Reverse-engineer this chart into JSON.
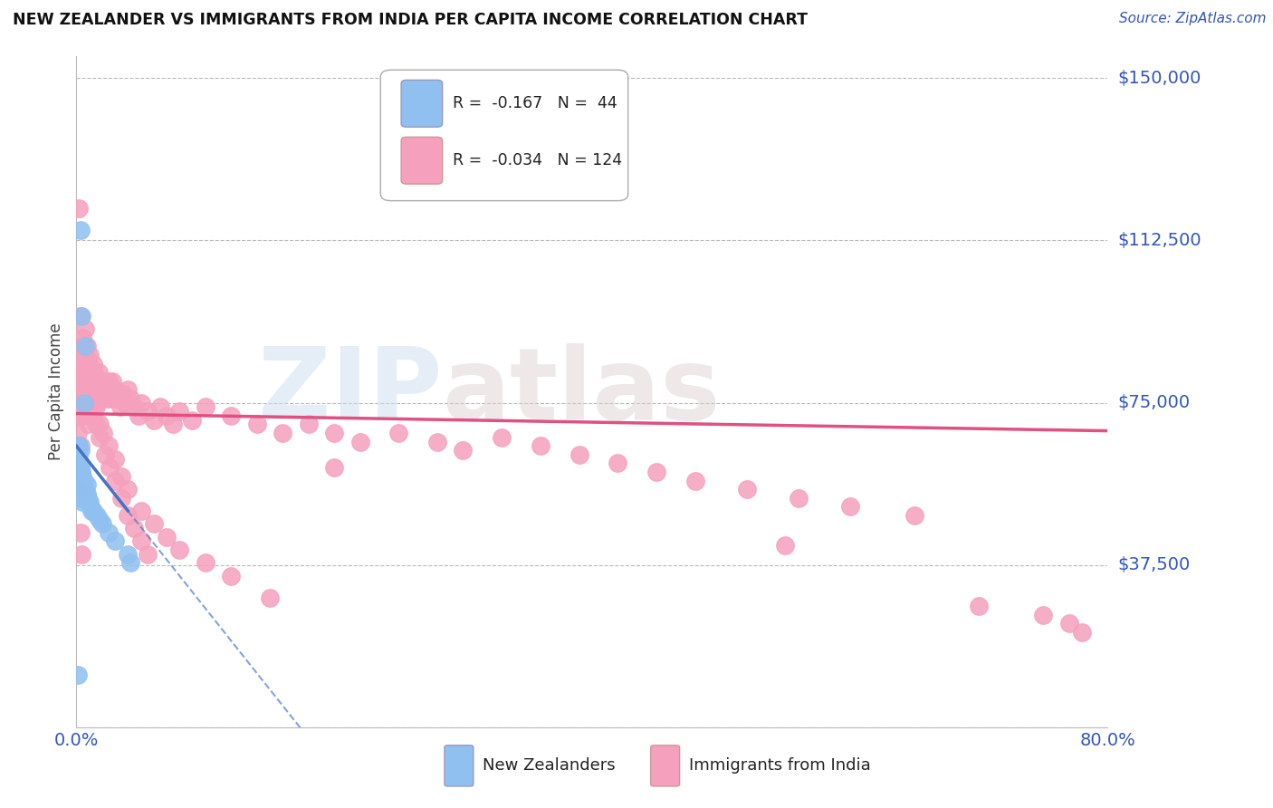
{
  "title": "NEW ZEALANDER VS IMMIGRANTS FROM INDIA PER CAPITA INCOME CORRELATION CHART",
  "source": "Source: ZipAtlas.com",
  "ylabel": "Per Capita Income",
  "xmin": 0.0,
  "xmax": 0.8,
  "ymin": 0,
  "ymax": 155000,
  "color_nz": "#90C0F0",
  "color_india": "#F5A0BC",
  "color_nz_line": "#4472C4",
  "color_india_line": "#E05080",
  "nz_x": [
    0.001,
    0.001,
    0.001,
    0.001,
    0.002,
    0.002,
    0.002,
    0.002,
    0.003,
    0.003,
    0.003,
    0.003,
    0.003,
    0.004,
    0.004,
    0.004,
    0.004,
    0.005,
    0.005,
    0.005,
    0.005,
    0.006,
    0.006,
    0.007,
    0.008,
    0.008,
    0.009,
    0.01,
    0.011,
    0.012,
    0.013,
    0.016,
    0.018,
    0.02,
    0.025,
    0.03,
    0.04,
    0.042,
    0.006,
    0.004,
    0.003,
    0.002,
    0.001,
    0.007
  ],
  "nz_y": [
    65000,
    63000,
    61000,
    58000,
    62000,
    60000,
    57000,
    55000,
    64000,
    60000,
    58000,
    56000,
    54000,
    59000,
    57000,
    55000,
    53000,
    58000,
    56000,
    54000,
    52000,
    57000,
    55000,
    54000,
    56000,
    54000,
    53000,
    52000,
    51000,
    50000,
    50000,
    49000,
    48000,
    47000,
    45000,
    43000,
    40000,
    38000,
    75000,
    95000,
    115000,
    65000,
    12000,
    88000
  ],
  "india_x": [
    0.001,
    0.001,
    0.002,
    0.002,
    0.002,
    0.003,
    0.003,
    0.003,
    0.003,
    0.004,
    0.004,
    0.004,
    0.005,
    0.005,
    0.005,
    0.005,
    0.006,
    0.006,
    0.006,
    0.007,
    0.007,
    0.007,
    0.007,
    0.008,
    0.008,
    0.008,
    0.009,
    0.009,
    0.01,
    0.01,
    0.011,
    0.011,
    0.012,
    0.012,
    0.013,
    0.013,
    0.014,
    0.014,
    0.015,
    0.015,
    0.016,
    0.017,
    0.018,
    0.019,
    0.02,
    0.021,
    0.022,
    0.023,
    0.024,
    0.025,
    0.026,
    0.027,
    0.028,
    0.03,
    0.032,
    0.034,
    0.036,
    0.038,
    0.04,
    0.042,
    0.045,
    0.048,
    0.05,
    0.055,
    0.06,
    0.065,
    0.07,
    0.075,
    0.08,
    0.09,
    0.1,
    0.12,
    0.14,
    0.16,
    0.18,
    0.2,
    0.22,
    0.25,
    0.28,
    0.3,
    0.33,
    0.36,
    0.39,
    0.42,
    0.45,
    0.48,
    0.52,
    0.56,
    0.6,
    0.65,
    0.003,
    0.005,
    0.007,
    0.009,
    0.011,
    0.013,
    0.015,
    0.018,
    0.021,
    0.025,
    0.03,
    0.035,
    0.04,
    0.05,
    0.06,
    0.07,
    0.08,
    0.1,
    0.12,
    0.15,
    0.006,
    0.008,
    0.01,
    0.012,
    0.015,
    0.018,
    0.022,
    0.026,
    0.03,
    0.035,
    0.04,
    0.045,
    0.05,
    0.055,
    0.7,
    0.75,
    0.77,
    0.78,
    0.2,
    0.55,
    0.002,
    0.002,
    0.003,
    0.004
  ],
  "india_y": [
    72000,
    68000,
    80000,
    75000,
    72000,
    95000,
    85000,
    78000,
    72000,
    88000,
    82000,
    76000,
    90000,
    84000,
    79000,
    74000,
    87000,
    82000,
    76000,
    92000,
    86000,
    80000,
    75000,
    88000,
    83000,
    77000,
    85000,
    80000,
    86000,
    79000,
    82000,
    76000,
    80000,
    74000,
    84000,
    78000,
    82000,
    76000,
    80000,
    74000,
    78000,
    82000,
    77000,
    80000,
    78000,
    76000,
    80000,
    78000,
    76000,
    80000,
    78000,
    76000,
    80000,
    78000,
    76000,
    74000,
    77000,
    75000,
    78000,
    76000,
    74000,
    72000,
    75000,
    73000,
    71000,
    74000,
    72000,
    70000,
    73000,
    71000,
    74000,
    72000,
    70000,
    68000,
    70000,
    68000,
    66000,
    68000,
    66000,
    64000,
    67000,
    65000,
    63000,
    61000,
    59000,
    57000,
    55000,
    53000,
    51000,
    49000,
    65000,
    72000,
    75000,
    70000,
    78000,
    72000,
    75000,
    70000,
    68000,
    65000,
    62000,
    58000,
    55000,
    50000,
    47000,
    44000,
    41000,
    38000,
    35000,
    30000,
    80000,
    78000,
    76000,
    74000,
    70000,
    67000,
    63000,
    60000,
    57000,
    53000,
    49000,
    46000,
    43000,
    40000,
    28000,
    26000,
    24000,
    22000,
    60000,
    42000,
    120000,
    55000,
    45000,
    40000
  ]
}
